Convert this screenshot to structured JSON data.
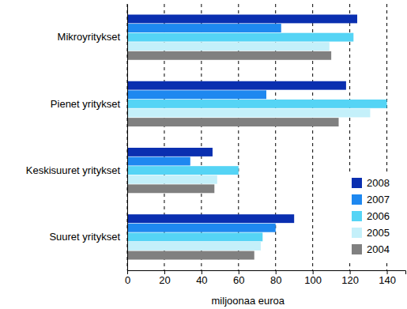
{
  "chart_data": {
    "type": "bar",
    "orientation": "horizontal",
    "x_label": "miljoonaa euroa",
    "categories": [
      "Mikroyritykset",
      "Pienet yritykset",
      "Keskisuuret yritykset",
      "Suuret yritykset"
    ],
    "series": [
      {
        "name": "2008",
        "color": "#0a2fb0",
        "values": [
          124,
          118,
          46,
          90
        ]
      },
      {
        "name": "2007",
        "color": "#1e88f0",
        "values": [
          83,
          75,
          34,
          80
        ]
      },
      {
        "name": "2006",
        "color": "#55d4f5",
        "values": [
          122,
          140,
          60,
          73
        ]
      },
      {
        "name": "2005",
        "color": "#c4f0fa",
        "values": [
          109,
          131,
          48.5,
          72
        ]
      },
      {
        "name": "2004",
        "color": "#808080",
        "values": [
          110,
          114,
          47,
          68.5
        ]
      }
    ],
    "xlim": [
      0,
      150
    ],
    "xticks": [
      0,
      20,
      40,
      60,
      80,
      100,
      120,
      140
    ],
    "grid": true,
    "legend": "lower right"
  }
}
